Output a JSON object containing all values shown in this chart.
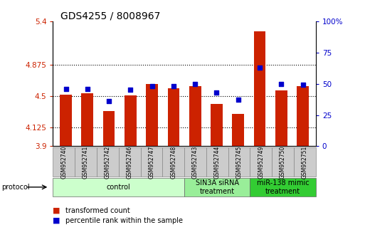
{
  "title": "GDS4255 / 8008967",
  "samples": [
    "GSM952740",
    "GSM952741",
    "GSM952742",
    "GSM952746",
    "GSM952747",
    "GSM952748",
    "GSM952743",
    "GSM952744",
    "GSM952745",
    "GSM952749",
    "GSM952750",
    "GSM952751"
  ],
  "red_values": [
    4.52,
    4.54,
    4.32,
    4.51,
    4.65,
    4.6,
    4.62,
    4.41,
    4.29,
    5.28,
    4.57,
    4.62
  ],
  "blue_values_pct": [
    46,
    46,
    36,
    45,
    48,
    48,
    50,
    43,
    37,
    63,
    50,
    49
  ],
  "ymin": 3.9,
  "ymax": 5.4,
  "yticks": [
    3.9,
    4.125,
    4.5,
    4.875,
    5.4
  ],
  "ytick_labels": [
    "3.9",
    "4.125",
    "4.5",
    "4.875",
    "5.4"
  ],
  "right_yticks": [
    0,
    25,
    50,
    75,
    100
  ],
  "right_ytick_labels": [
    "0",
    "25",
    "50",
    "75",
    "100%"
  ],
  "red_color": "#cc2200",
  "blue_color": "#0000cc",
  "bar_width": 0.55,
  "groups": [
    {
      "label": "control",
      "indices": [
        0,
        1,
        2,
        3,
        4,
        5
      ],
      "color": "#ccffcc"
    },
    {
      "label": "SIN3A siRNA\ntreatment",
      "indices": [
        6,
        7,
        8
      ],
      "color": "#99ee99"
    },
    {
      "label": "miR-138 mimic\ntreatment",
      "indices": [
        9,
        10,
        11
      ],
      "color": "#33cc33"
    }
  ],
  "legend_red_label": "transformed count",
  "legend_blue_label": "percentile rank within the sample",
  "protocol_label": "protocol",
  "title_fontsize": 10,
  "tick_fontsize": 7.5,
  "sample_fontsize": 5.5,
  "group_fontsize": 7,
  "legend_fontsize": 7
}
